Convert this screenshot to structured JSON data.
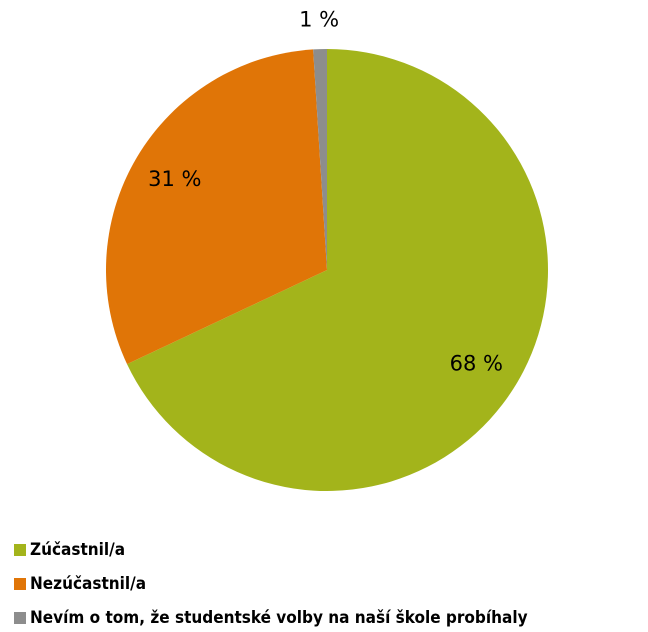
{
  "chart_data": {
    "type": "pie",
    "categories": [
      "Zúčastnil/a",
      "Nezúčastnil/a",
      "Nevím o tom, že studentské volby na naší škole probíhaly"
    ],
    "values": [
      68,
      31,
      1
    ],
    "value_labels": [
      "68 %",
      "31 %",
      "1 %"
    ],
    "colors": [
      "#a3b41b",
      "#e07507",
      "#8d8d8d"
    ],
    "legend": "bottom"
  }
}
